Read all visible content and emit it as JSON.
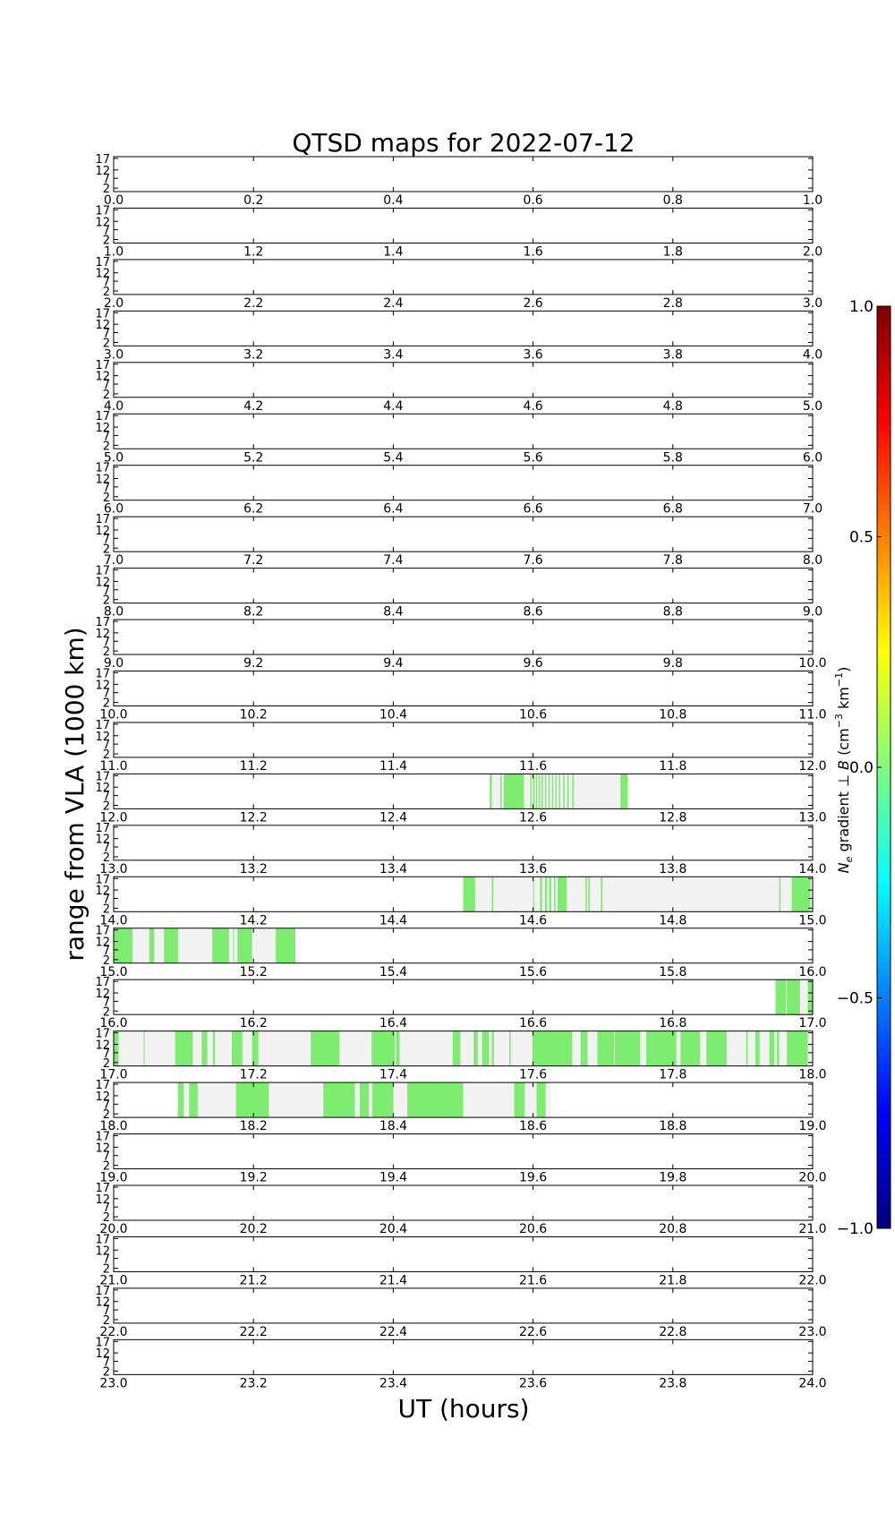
{
  "chart_data": {
    "type": "heatmap",
    "title": "QTSD maps for 2022-07-12",
    "xlabel": "UT (hours)",
    "ylabel": "range from VLA (1000 km)",
    "y_ticks": [
      "2",
      "7",
      "12",
      "17"
    ],
    "colorbar": {
      "label": "N_e gradient ⊥ B (cm⁻³ km⁻¹)",
      "label_parts": {
        "ne": "N",
        "ne_sub": "e",
        "word": " gradient ⊥ ",
        "b": "B",
        "unit_open": " (cm",
        "unit_exp1": "−3",
        "unit_mid": " km",
        "unit_exp2": "−1",
        "unit_close": ")"
      },
      "range": [
        -1.0,
        1.0
      ],
      "ticks": [
        "1.0",
        "0.5",
        "0.0",
        "−0.5",
        "−1.0"
      ],
      "tick_values": [
        1.0,
        0.5,
        0.0,
        -0.5,
        -1.0
      ],
      "colormap": "jet"
    },
    "fill_color": "#7ced6e",
    "background_color": "#f2f2f2",
    "panels": [
      {
        "start": 0,
        "ticks": [
          "0.0",
          "0.2",
          "0.4",
          "0.6",
          "0.8",
          "1.0"
        ],
        "coverage": [],
        "green": []
      },
      {
        "start": 1,
        "ticks": [
          "1.0",
          "1.2",
          "1.4",
          "1.6",
          "1.8",
          "2.0"
        ],
        "coverage": [],
        "green": []
      },
      {
        "start": 2,
        "ticks": [
          "2.0",
          "2.2",
          "2.4",
          "2.6",
          "2.8",
          "3.0"
        ],
        "coverage": [],
        "green": []
      },
      {
        "start": 3,
        "ticks": [
          "3.0",
          "3.2",
          "3.4",
          "3.6",
          "3.8",
          "4.0"
        ],
        "coverage": [],
        "green": []
      },
      {
        "start": 4,
        "ticks": [
          "4.0",
          "4.2",
          "4.4",
          "4.6",
          "4.8",
          "5.0"
        ],
        "coverage": [],
        "green": []
      },
      {
        "start": 5,
        "ticks": [
          "5.0",
          "5.2",
          "5.4",
          "5.6",
          "5.8",
          "6.0"
        ],
        "coverage": [],
        "green": []
      },
      {
        "start": 6,
        "ticks": [
          "6.0",
          "6.2",
          "6.4",
          "6.6",
          "6.8",
          "7.0"
        ],
        "coverage": [],
        "green": []
      },
      {
        "start": 7,
        "ticks": [
          "7.0",
          "7.2",
          "7.4",
          "7.6",
          "7.8",
          "8.0"
        ],
        "coverage": [],
        "green": []
      },
      {
        "start": 8,
        "ticks": [
          "8.0",
          "8.2",
          "8.4",
          "8.6",
          "8.8",
          "9.0"
        ],
        "coverage": [],
        "green": []
      },
      {
        "start": 9,
        "ticks": [
          "9.0",
          "9.2",
          "9.4",
          "9.6",
          "9.8",
          "10.0"
        ],
        "coverage": [],
        "green": []
      },
      {
        "start": 10,
        "ticks": [
          "10.0",
          "10.2",
          "10.4",
          "10.6",
          "10.8",
          "11.0"
        ],
        "coverage": [],
        "green": []
      },
      {
        "start": 11,
        "ticks": [
          "11.0",
          "11.2",
          "11.4",
          "11.6",
          "11.8",
          "12.0"
        ],
        "coverage": [],
        "green": []
      },
      {
        "start": 12,
        "ticks": [
          "12.0",
          "12.2",
          "12.4",
          "12.6",
          "12.8",
          "13.0"
        ],
        "coverage": [
          [
            12.538,
            12.736
          ]
        ],
        "green": [
          [
            12.538,
            12.541
          ],
          [
            12.553,
            12.555
          ],
          [
            12.558,
            12.587
          ],
          [
            12.596,
            12.598
          ],
          [
            12.6,
            12.602
          ],
          [
            12.604,
            12.606
          ],
          [
            12.608,
            12.61
          ],
          [
            12.612,
            12.614
          ],
          [
            12.617,
            12.619
          ],
          [
            12.622,
            12.624
          ],
          [
            12.627,
            12.629
          ],
          [
            12.632,
            12.634
          ],
          [
            12.637,
            12.639
          ],
          [
            12.643,
            12.645
          ],
          [
            12.649,
            12.651
          ],
          [
            12.656,
            12.658
          ],
          [
            12.725,
            12.735
          ]
        ]
      },
      {
        "start": 13,
        "ticks": [
          "13.0",
          "13.2",
          "13.4",
          "13.6",
          "13.8",
          "14.0"
        ],
        "coverage": [],
        "green": []
      },
      {
        "start": 14,
        "ticks": [
          "14.0",
          "14.2",
          "14.4",
          "14.6",
          "14.8",
          "15.0"
        ],
        "coverage": [
          [
            14.5,
            15.0
          ]
        ],
        "green": [
          [
            14.5,
            14.517
          ],
          [
            14.541,
            14.543
          ],
          [
            14.6,
            14.601
          ],
          [
            14.61,
            14.613
          ],
          [
            14.617,
            14.62
          ],
          [
            14.623,
            14.626
          ],
          [
            14.63,
            14.632
          ],
          [
            14.635,
            14.648
          ],
          [
            14.675,
            14.677
          ],
          [
            14.679,
            14.681
          ],
          [
            14.697,
            14.699
          ],
          [
            14.952,
            14.954
          ],
          [
            14.97,
            14.997
          ]
        ]
      },
      {
        "start": 15,
        "ticks": [
          "15.0",
          "15.2",
          "15.4",
          "15.6",
          "15.8",
          "16.0"
        ],
        "coverage": [
          [
            15.0,
            15.26
          ]
        ],
        "green": [
          [
            15.0,
            15.027
          ],
          [
            15.051,
            15.058
          ],
          [
            15.072,
            15.092
          ],
          [
            15.141,
            15.165
          ],
          [
            15.171,
            15.172
          ],
          [
            15.177,
            15.198
          ],
          [
            15.232,
            15.26
          ]
        ]
      },
      {
        "start": 16,
        "ticks": [
          "16.0",
          "16.2",
          "16.4",
          "16.6",
          "16.8",
          "17.0"
        ],
        "coverage": [
          [
            16.945,
            17.0
          ]
        ],
        "green": [
          [
            16.947,
            16.962
          ],
          [
            16.963,
            16.982
          ],
          [
            16.993,
            17.0
          ]
        ]
      },
      {
        "start": 17,
        "ticks": [
          "17.0",
          "17.2",
          "17.4",
          "17.6",
          "17.8",
          "18.0"
        ],
        "coverage": [
          [
            17.0,
            18.0
          ]
        ],
        "green": [
          [
            17.0,
            17.007
          ],
          [
            17.043,
            17.044
          ],
          [
            17.088,
            17.113
          ],
          [
            17.126,
            17.134
          ],
          [
            17.142,
            17.145
          ],
          [
            17.169,
            17.184
          ],
          [
            17.198,
            17.207
          ],
          [
            17.282,
            17.323
          ],
          [
            17.369,
            17.402
          ],
          [
            17.404,
            17.409
          ],
          [
            17.485,
            17.496
          ],
          [
            17.515,
            17.521
          ],
          [
            17.527,
            17.537
          ],
          [
            17.541,
            17.544
          ],
          [
            17.566,
            17.568
          ],
          [
            17.599,
            17.656
          ],
          [
            17.668,
            17.678
          ],
          [
            17.692,
            17.716
          ],
          [
            17.717,
            17.753
          ],
          [
            17.762,
            17.805
          ],
          [
            17.811,
            17.839
          ],
          [
            17.848,
            17.877
          ],
          [
            17.905,
            17.907
          ],
          [
            17.918,
            17.924
          ],
          [
            17.938,
            17.945
          ],
          [
            17.949,
            17.952
          ],
          [
            17.963,
            17.993
          ]
        ]
      },
      {
        "start": 18,
        "ticks": [
          "18.0",
          "18.2",
          "18.4",
          "18.6",
          "18.8",
          "19.0"
        ],
        "coverage": [
          [
            18.09,
            18.625
          ]
        ],
        "green": [
          [
            18.092,
            18.1
          ],
          [
            18.108,
            18.12
          ],
          [
            18.175,
            18.222
          ],
          [
            18.3,
            18.345
          ],
          [
            18.352,
            18.365
          ],
          [
            18.37,
            18.4
          ],
          [
            18.42,
            18.5
          ],
          [
            18.573,
            18.588
          ],
          [
            18.605,
            18.618
          ]
        ]
      },
      {
        "start": 19,
        "ticks": [
          "19.0",
          "19.2",
          "19.4",
          "19.6",
          "19.8",
          "20.0"
        ],
        "coverage": [],
        "green": []
      },
      {
        "start": 20,
        "ticks": [
          "20.0",
          "20.2",
          "20.4",
          "20.6",
          "20.8",
          "21.0"
        ],
        "coverage": [],
        "green": []
      },
      {
        "start": 21,
        "ticks": [
          "21.0",
          "21.2",
          "21.4",
          "21.6",
          "21.8",
          "22.0"
        ],
        "coverage": [],
        "green": []
      },
      {
        "start": 22,
        "ticks": [
          "22.0",
          "22.2",
          "22.4",
          "22.6",
          "22.8",
          "23.0"
        ],
        "coverage": [],
        "green": []
      },
      {
        "start": 23,
        "ticks": [
          "23.0",
          "23.2",
          "23.4",
          "23.6",
          "23.8",
          "24.0"
        ],
        "coverage": [],
        "green": []
      }
    ]
  }
}
